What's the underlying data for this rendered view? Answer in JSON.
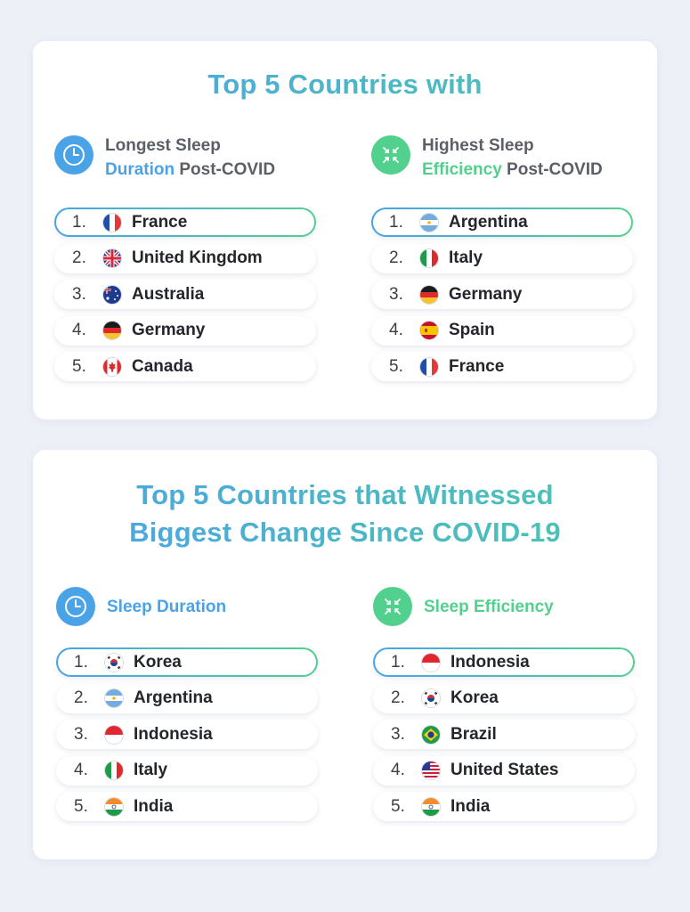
{
  "sections": [
    {
      "title": "Top 5 Countries with",
      "columns": [
        {
          "icon": "clock-icon",
          "accent": "#4aa3e6",
          "heading_line1": "Longest Sleep",
          "heading_accent": "Duration",
          "heading_rest": " Post-COVID",
          "items": [
            {
              "rank": "1.",
              "country": "France",
              "flag": "france-flag-icon"
            },
            {
              "rank": "2.",
              "country": "United Kingdom",
              "flag": "uk-flag-icon"
            },
            {
              "rank": "3.",
              "country": "Australia",
              "flag": "australia-flag-icon"
            },
            {
              "rank": "4.",
              "country": "Germany",
              "flag": "germany-flag-icon"
            },
            {
              "rank": "5.",
              "country": "Canada",
              "flag": "canada-flag-icon"
            }
          ]
        },
        {
          "icon": "arrows-inward-icon",
          "accent": "#52d08e",
          "heading_line1": "Highest Sleep",
          "heading_accent": "Efficiency",
          "heading_rest": " Post-COVID",
          "items": [
            {
              "rank": "1.",
              "country": "Argentina",
              "flag": "argentina-flag-icon"
            },
            {
              "rank": "2.",
              "country": "Italy",
              "flag": "italy-flag-icon"
            },
            {
              "rank": "3.",
              "country": "Germany",
              "flag": "germany-flag-icon"
            },
            {
              "rank": "4.",
              "country": "Spain",
              "flag": "spain-flag-icon"
            },
            {
              "rank": "5.",
              "country": "France",
              "flag": "france-flag-icon"
            }
          ]
        }
      ]
    },
    {
      "title_line1": "Top 5 Countries that Witnessed",
      "title_line2": "Biggest Change Since COVID-19",
      "columns": [
        {
          "icon": "clock-icon",
          "accent": "#4aa3e6",
          "heading": "Sleep Duration",
          "items": [
            {
              "rank": "1.",
              "country": "Korea",
              "flag": "korea-flag-icon"
            },
            {
              "rank": "2.",
              "country": "Argentina",
              "flag": "argentina-flag-icon"
            },
            {
              "rank": "3.",
              "country": "Indonesia",
              "flag": "indonesia-flag-icon"
            },
            {
              "rank": "4.",
              "country": "Italy",
              "flag": "italy-flag-icon"
            },
            {
              "rank": "5.",
              "country": "India",
              "flag": "india-flag-icon"
            }
          ]
        },
        {
          "icon": "arrows-inward-icon",
          "accent": "#52d08e",
          "heading": "Sleep Efficiency",
          "items": [
            {
              "rank": "1.",
              "country": "Indonesia",
              "flag": "indonesia-flag-icon"
            },
            {
              "rank": "2.",
              "country": "Korea",
              "flag": "korea-flag-icon"
            },
            {
              "rank": "3.",
              "country": "Brazil",
              "flag": "brazil-flag-icon"
            },
            {
              "rank": "4.",
              "country": "United States",
              "flag": "usa-flag-icon"
            },
            {
              "rank": "5.",
              "country": "India",
              "flag": "india-flag-icon"
            }
          ]
        }
      ]
    }
  ]
}
